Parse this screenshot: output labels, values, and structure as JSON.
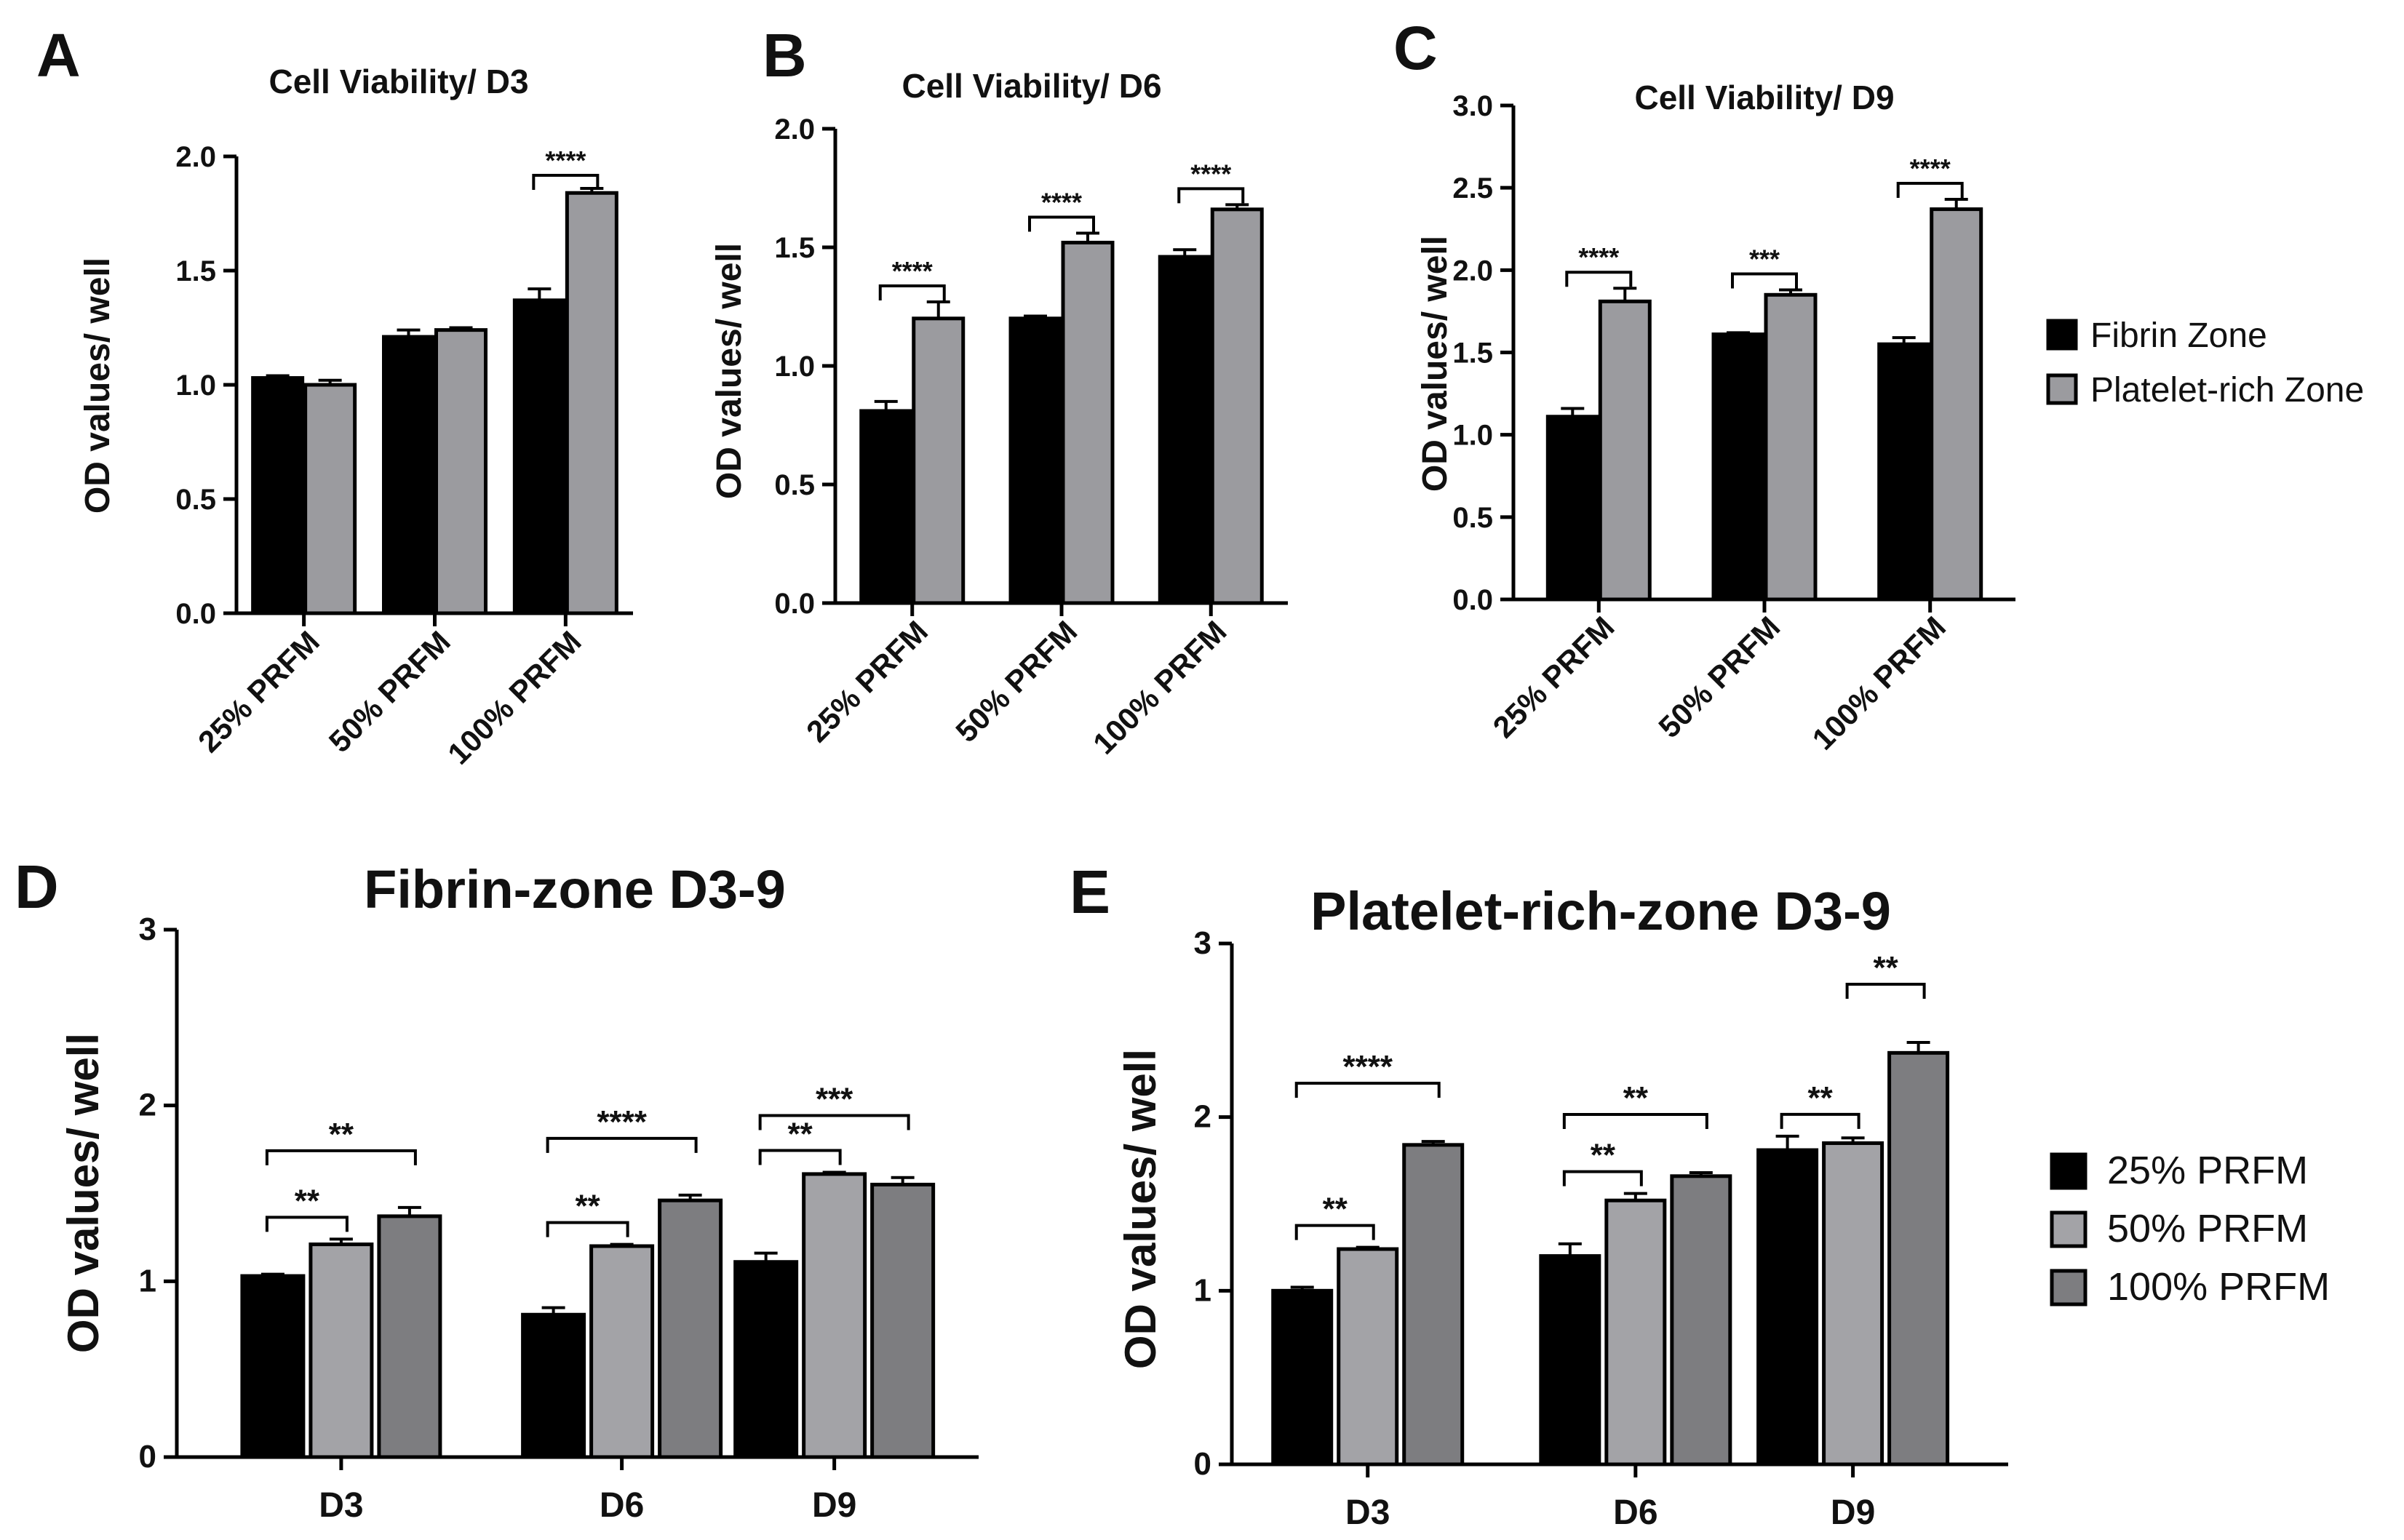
{
  "chart_data": [
    {
      "panel": "A",
      "type": "bar",
      "title": "Cell Viability/ D3",
      "ylabel": "OD values/ well",
      "xlabel": "",
      "ylim": [
        0,
        2.0
      ],
      "yticks": [
        "0.0",
        "0.5",
        "1.0",
        "1.5",
        "2.0"
      ],
      "categories": [
        "25% PRFM",
        "50% PRFM",
        "100% PRFM"
      ],
      "series": [
        {
          "name": "Fibrin Zone",
          "color": "#000000",
          "values": [
            1.03,
            1.21,
            1.37
          ],
          "errors": [
            0.01,
            0.03,
            0.05
          ]
        },
        {
          "name": "Platelet-rich Zone",
          "color": "#9b9b9f",
          "values": [
            1.0,
            1.24,
            1.84
          ],
          "errors": [
            0.02,
            0.01,
            0.02
          ]
        }
      ],
      "significance": [
        {
          "category": 2,
          "from": 0,
          "to": 1,
          "label": "****"
        }
      ]
    },
    {
      "panel": "B",
      "type": "bar",
      "title": "Cell Viability/ D6",
      "ylabel": "OD values/ well",
      "xlabel": "",
      "ylim": [
        0,
        2.0
      ],
      "yticks": [
        "0.0",
        "0.5",
        "1.0",
        "1.5",
        "2.0"
      ],
      "categories": [
        "25% PRFM",
        "50% PRFM",
        "100% PRFM"
      ],
      "series": [
        {
          "name": "Fibrin Zone",
          "color": "#000000",
          "values": [
            0.81,
            1.2,
            1.46
          ],
          "errors": [
            0.04,
            0.01,
            0.03
          ]
        },
        {
          "name": "Platelet-rich Zone",
          "color": "#9b9b9f",
          "values": [
            1.2,
            1.52,
            1.66
          ],
          "errors": [
            0.07,
            0.04,
            0.02
          ]
        }
      ],
      "significance": [
        {
          "category": 0,
          "from": 0,
          "to": 1,
          "label": "****"
        },
        {
          "category": 1,
          "from": 0,
          "to": 1,
          "label": "****"
        },
        {
          "category": 2,
          "from": 0,
          "to": 1,
          "label": "****"
        }
      ]
    },
    {
      "panel": "C",
      "type": "bar",
      "title": "Cell Viability/ D9",
      "ylabel": "OD values/ well",
      "xlabel": "",
      "ylim": [
        0,
        3.0
      ],
      "yticks": [
        "0.0",
        "0.5",
        "1.0",
        "1.5",
        "2.0",
        "2.5",
        "3.0"
      ],
      "categories": [
        "25% PRFM",
        "50% PRFM",
        "100% PRFM"
      ],
      "series": [
        {
          "name": "Fibrin Zone",
          "color": "#000000",
          "values": [
            1.11,
            1.61,
            1.55
          ],
          "errors": [
            0.05,
            0.01,
            0.04
          ]
        },
        {
          "name": "Platelet-rich Zone",
          "color": "#9b9b9f",
          "values": [
            1.81,
            1.85,
            2.37
          ],
          "errors": [
            0.08,
            0.03,
            0.06
          ]
        }
      ],
      "significance": [
        {
          "category": 0,
          "from": 0,
          "to": 1,
          "label": "****"
        },
        {
          "category": 1,
          "from": 0,
          "to": 1,
          "label": "***"
        },
        {
          "category": 2,
          "from": 0,
          "to": 1,
          "label": "****"
        }
      ],
      "legend": [
        "Fibrin Zone",
        "Platelet-rich Zone"
      ]
    },
    {
      "panel": "D",
      "type": "bar",
      "title": "Fibrin-zone D3-9",
      "ylabel": "OD values/ well",
      "xlabel": "",
      "ylim": [
        0,
        3
      ],
      "yticks": [
        "0",
        "1",
        "2",
        "3"
      ],
      "categories": [
        "D3",
        "D6",
        "D9"
      ],
      "series": [
        {
          "name": "25% PRFM",
          "color": "#000000",
          "values": [
            1.03,
            0.81,
            1.11
          ],
          "errors": [
            0.01,
            0.04,
            0.05
          ]
        },
        {
          "name": "50% PRFM",
          "color": "#a3a3a7",
          "values": [
            1.21,
            1.2,
            1.61
          ],
          "errors": [
            0.03,
            0.01,
            0.01
          ]
        },
        {
          "name": "100% PRFM",
          "color": "#7d7d80",
          "values": [
            1.37,
            1.46,
            1.55
          ],
          "errors": [
            0.05,
            0.03,
            0.04
          ]
        }
      ],
      "significance": [
        {
          "category": 0,
          "from": 0,
          "to": 1,
          "label": "**"
        },
        {
          "category": 0,
          "from": 0,
          "to": 2,
          "label": "**"
        },
        {
          "category": 1,
          "from": 0,
          "to": 1,
          "label": "**"
        },
        {
          "category": 1,
          "from": 0,
          "to": 2,
          "label": "****"
        },
        {
          "category": 2,
          "from": 0,
          "to": 1,
          "label": "**"
        },
        {
          "category": 2,
          "from": 0,
          "to": 2,
          "label": "***"
        }
      ]
    },
    {
      "panel": "E",
      "type": "bar",
      "title": "Platelet-rich-zone D3-9",
      "ylabel": "OD values/ well",
      "xlabel": "",
      "ylim": [
        0,
        3
      ],
      "yticks": [
        "0",
        "1",
        "2",
        "3"
      ],
      "categories": [
        "D3",
        "D6",
        "D9"
      ],
      "series": [
        {
          "name": "25% PRFM",
          "color": "#000000",
          "values": [
            1.0,
            1.2,
            1.81
          ],
          "errors": [
            0.02,
            0.07,
            0.08
          ]
        },
        {
          "name": "50% PRFM",
          "color": "#a3a3a7",
          "values": [
            1.24,
            1.52,
            1.85
          ],
          "errors": [
            0.01,
            0.04,
            0.03
          ]
        },
        {
          "name": "100% PRFM",
          "color": "#7d7d80",
          "values": [
            1.84,
            1.66,
            2.37
          ],
          "errors": [
            0.02,
            0.02,
            0.06
          ]
        }
      ],
      "significance": [
        {
          "category": 0,
          "from": 0,
          "to": 1,
          "label": "**"
        },
        {
          "category": 0,
          "from": 0,
          "to": 2,
          "label": "****"
        },
        {
          "category": 1,
          "from": 0,
          "to": 1,
          "label": "**"
        },
        {
          "category": 1,
          "from": 0,
          "to": 2,
          "label": "**"
        },
        {
          "category": 2,
          "from": 0,
          "to": 1,
          "label": "**"
        },
        {
          "category": 2,
          "from": 1,
          "to": 2,
          "label": "**"
        }
      ],
      "legend": [
        "25% PRFM",
        "50% PRFM",
        "100% PRFM"
      ]
    }
  ]
}
